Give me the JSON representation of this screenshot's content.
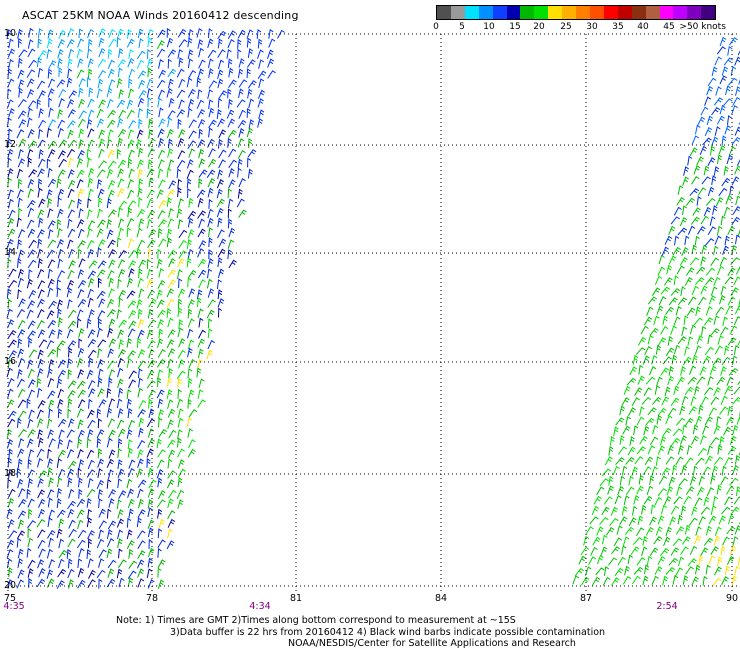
{
  "title": "ASCAT 25KM NOAA Winds 20160412 descending",
  "legend": {
    "colors": [
      "#505050",
      "#9a9a9a",
      "#00e0ff",
      "#0090ff",
      "#1040ff",
      "#0000b0",
      "#00b800",
      "#00e000",
      "#ffe000",
      "#ffb000",
      "#ff8000",
      "#ff5000",
      "#ff0000",
      "#c00000",
      "#8a3010",
      "#b06040",
      "#ff00ff",
      "#c000ff",
      "#8000c0",
      "#400080"
    ],
    "labels": [
      "0",
      "5",
      "10",
      "15",
      "20",
      "25",
      "30",
      "35",
      "40",
      "45",
      ">50 knots"
    ]
  },
  "axes": {
    "lon_labels": [
      "75",
      "78",
      "81",
      "84",
      "87",
      "90"
    ],
    "lat_labels": [
      "10",
      "12",
      "14",
      "16",
      "18",
      "20"
    ]
  },
  "times": [
    "4:35",
    "4:34",
    "2:54"
  ],
  "notes": {
    "line1": "Note: 1) Times are GMT 2)Times along bottom correspond to measurement at ~15S",
    "line2": "3)Data buffer is 22 hrs from 20160412 4) Black wind barbs indicate possible contamination",
    "line3": "NOAA/NESDIS/Center for Satellite Applications and Research"
  },
  "colors": {
    "time": "#800080",
    "grid": "#000000"
  }
}
